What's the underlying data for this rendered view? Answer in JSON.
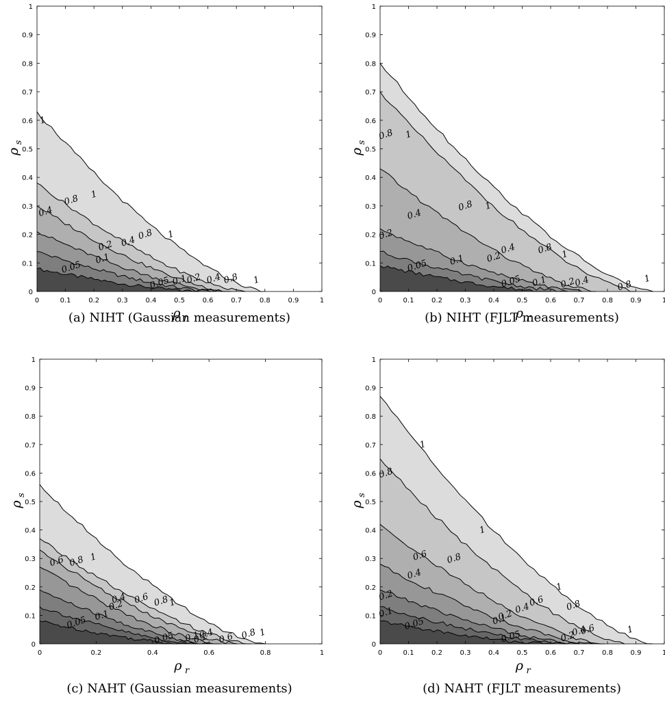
{
  "chart_data": [
    {
      "type": "contour",
      "caption": "(a) NIHT (Gaussian measurements)",
      "xlabel": "ρ",
      "xlabel_sub": "r",
      "ylabel": "ρ",
      "ylabel_sub": "s",
      "xlim": [
        0,
        1
      ],
      "ylim": [
        0,
        1
      ],
      "xticks": [
        "0",
        "0.1",
        "0.2",
        "0.3",
        "0.4",
        "0.5",
        "0.6",
        "0.7",
        "0.8",
        "0.9",
        "1"
      ],
      "yticks": [
        "0",
        "0.1",
        "0.2",
        "0.3",
        "0.4",
        "0.5",
        "0.6",
        "0.7",
        "0.8",
        "0.9",
        "1"
      ],
      "levels": [
        {
          "level": "0.05",
          "label": "0.05",
          "y0": 0.08,
          "x0": 0.0,
          "y_end": 0.0,
          "x_end": 0.57,
          "label_points": [
            [
              0.12,
              0.085
            ],
            [
              0.43,
              0.03
            ]
          ]
        },
        {
          "level": "0.1",
          "label": "0.1",
          "y0": 0.14,
          "x0": 0.0,
          "y_end": 0.0,
          "x_end": 0.62,
          "label_points": [
            [
              0.23,
              0.115
            ],
            [
              0.5,
              0.04
            ]
          ]
        },
        {
          "level": "0.2",
          "label": "0.2",
          "y0": 0.21,
          "x0": 0.0,
          "y_end": 0.0,
          "x_end": 0.65,
          "label_points": [
            [
              0.24,
              0.16
            ],
            [
              0.55,
              0.045
            ]
          ]
        },
        {
          "level": "0.4",
          "label": "0.4",
          "y0": 0.3,
          "x0": 0.0,
          "y_end": 0.0,
          "x_end": 0.68,
          "label_points": [
            [
              0.03,
              0.28
            ],
            [
              0.32,
              0.175
            ],
            [
              0.62,
              0.045
            ]
          ]
        },
        {
          "level": "0.8",
          "label": "0.8",
          "y0": 0.38,
          "x0": 0.0,
          "y_end": 0.0,
          "x_end": 0.73,
          "label_points": [
            [
              0.12,
              0.32
            ],
            [
              0.38,
              0.2
            ],
            [
              0.68,
              0.045
            ]
          ]
        },
        {
          "level": "1",
          "label": "1",
          "y0": 0.63,
          "x0": 0.0,
          "y_end": 0.0,
          "x_end": 0.8,
          "label_points": [
            [
              0.02,
              0.6
            ],
            [
              0.2,
              0.34
            ],
            [
              0.47,
              0.2
            ],
            [
              0.77,
              0.04
            ]
          ]
        }
      ]
    },
    {
      "type": "contour",
      "caption": "(b) NIHT (FJLT measurements)",
      "xlabel": "ρ",
      "xlabel_sub": "r",
      "ylabel": "ρ",
      "ylabel_sub": "s",
      "xlim": [
        0,
        1
      ],
      "ylim": [
        0,
        1
      ],
      "xticks": [
        "0",
        "0.1",
        "0.2",
        "0.3",
        "0.4",
        "0.5",
        "0.6",
        "0.7",
        "0.8",
        "0.9",
        "1"
      ],
      "yticks": [
        "0",
        "0.1",
        "0.2",
        "0.3",
        "0.4",
        "0.5",
        "0.6",
        "0.7",
        "0.8",
        "0.9",
        "1"
      ],
      "levels": [
        {
          "level": "0.05",
          "label": "0.05",
          "y0": 0.09,
          "x0": 0.0,
          "y_end": 0.0,
          "x_end": 0.6,
          "label_points": [
            [
              0.13,
              0.09
            ],
            [
              0.46,
              0.035
            ]
          ]
        },
        {
          "level": "0.1",
          "label": "0.1",
          "y0": 0.14,
          "x0": 0.0,
          "y_end": 0.0,
          "x_end": 0.66,
          "label_points": [
            [
              0.27,
              0.11
            ],
            [
              0.56,
              0.035
            ]
          ]
        },
        {
          "level": "0.2",
          "label": "0.2",
          "y0": 0.22,
          "x0": 0.0,
          "y_end": 0.0,
          "x_end": 0.71,
          "label_points": [
            [
              0.02,
              0.2
            ],
            [
              0.4,
              0.12
            ],
            [
              0.66,
              0.03
            ]
          ]
        },
        {
          "level": "0.4",
          "label": "0.4",
          "y0": 0.43,
          "x0": 0.0,
          "y_end": 0.0,
          "x_end": 0.76,
          "label_points": [
            [
              0.12,
              0.27
            ],
            [
              0.45,
              0.15
            ],
            [
              0.71,
              0.035
            ]
          ]
        },
        {
          "level": "0.8",
          "label": "0.8",
          "y0": 0.7,
          "x0": 0.0,
          "y_end": 0.0,
          "x_end": 0.9,
          "label_points": [
            [
              0.02,
              0.55
            ],
            [
              0.3,
              0.3
            ],
            [
              0.58,
              0.15
            ],
            [
              0.86,
              0.02
            ]
          ]
        },
        {
          "level": "1",
          "label": "1",
          "y0": 0.8,
          "x0": 0.0,
          "y_end": 0.0,
          "x_end": 0.96,
          "label_points": [
            [
              0.1,
              0.55
            ],
            [
              0.38,
              0.3
            ],
            [
              0.65,
              0.13
            ],
            [
              0.94,
              0.045
            ]
          ]
        }
      ]
    },
    {
      "type": "contour",
      "caption": "(c) NAHT (Gaussian measurements)",
      "xlabel": "ρ",
      "xlabel_sub": "r",
      "ylabel": "ρ",
      "ylabel_sub": "s",
      "xlim": [
        0,
        1
      ],
      "ylim": [
        0,
        1
      ],
      "xticks": [
        "0",
        "0.2",
        "0.4",
        "0.6",
        "0.8",
        "1"
      ],
      "yticks": [
        "0",
        "0.1",
        "0.2",
        "0.3",
        "0.4",
        "0.5",
        "0.6",
        "0.7",
        "0.8",
        "0.9",
        "1"
      ],
      "levels": [
        {
          "level": "0.05",
          "label": "0.05",
          "y0": 0.08,
          "x0": 0.0,
          "y_end": 0.0,
          "x_end": 0.52,
          "label_points": [
            [
              0.13,
              0.075
            ],
            [
              0.44,
              0.02
            ]
          ]
        },
        {
          "level": "0.1",
          "label": "0.1",
          "y0": 0.13,
          "x0": 0.0,
          "y_end": 0.0,
          "x_end": 0.56,
          "label_points": [
            [
              0.22,
              0.1
            ],
            [
              0.54,
              0.025
            ]
          ]
        },
        {
          "level": "0.2",
          "label": "0.2",
          "y0": 0.19,
          "x0": 0.0,
          "y_end": 0.0,
          "x_end": 0.6,
          "label_points": [
            [
              0.27,
              0.135
            ],
            [
              0.57,
              0.02
            ]
          ]
        },
        {
          "level": "0.4",
          "label": "0.4",
          "y0": 0.27,
          "x0": 0.0,
          "y_end": 0.0,
          "x_end": 0.64,
          "label_points": [
            [
              0.28,
              0.16
            ],
            [
              0.59,
              0.035
            ]
          ]
        },
        {
          "level": "0.6",
          "label": "0.6",
          "y0": 0.33,
          "x0": 0.0,
          "y_end": 0.0,
          "x_end": 0.7,
          "label_points": [
            [
              0.06,
              0.29
            ],
            [
              0.36,
              0.16
            ],
            [
              0.66,
              0.02
            ]
          ]
        },
        {
          "level": "0.8",
          "label": "0.8",
          "y0": 0.37,
          "x0": 0.0,
          "y_end": 0.0,
          "x_end": 0.75,
          "label_points": [
            [
              0.13,
              0.29
            ],
            [
              0.43,
              0.15
            ],
            [
              0.74,
              0.035
            ]
          ]
        },
        {
          "level": "1",
          "label": "1",
          "y0": 0.56,
          "x0": 0.0,
          "y_end": 0.0,
          "x_end": 0.8,
          "label_points": [
            [
              0.19,
              0.305
            ],
            [
              0.47,
              0.145
            ],
            [
              0.79,
              0.04
            ]
          ]
        }
      ]
    },
    {
      "type": "contour",
      "caption": "(d) NAHT (FJLT measurements)",
      "xlabel": "ρ",
      "xlabel_sub": "r",
      "ylabel": "ρ",
      "ylabel_sub": "s",
      "xlim": [
        0,
        1
      ],
      "ylim": [
        0,
        1
      ],
      "xticks": [
        "0",
        "0.1",
        "0.2",
        "0.3",
        "0.4",
        "0.5",
        "0.6",
        "0.7",
        "0.8",
        "0.9",
        "1"
      ],
      "yticks": [
        "0",
        "0.1",
        "0.2",
        "0.3",
        "0.4",
        "0.5",
        "0.6",
        "0.7",
        "0.8",
        "0.9",
        "1"
      ],
      "levels": [
        {
          "level": "0.05",
          "label": "0.05",
          "y0": 0.08,
          "x0": 0.0,
          "y_end": 0.0,
          "x_end": 0.6,
          "label_points": [
            [
              0.12,
              0.07
            ],
            [
              0.46,
              0.025
            ]
          ]
        },
        {
          "level": "0.1",
          "label": "0.1",
          "y0": 0.13,
          "x0": 0.0,
          "y_end": 0.0,
          "x_end": 0.66,
          "label_points": [
            [
              0.02,
              0.11
            ],
            [
              0.42,
              0.085
            ]
          ]
        },
        {
          "level": "0.2",
          "label": "0.2",
          "y0": 0.19,
          "x0": 0.0,
          "y_end": 0.0,
          "x_end": 0.7,
          "label_points": [
            [
              0.02,
              0.17
            ],
            [
              0.44,
              0.1
            ],
            [
              0.66,
              0.025
            ]
          ]
        },
        {
          "level": "0.4",
          "label": "0.4",
          "y0": 0.28,
          "x0": 0.0,
          "y_end": 0.0,
          "x_end": 0.75,
          "label_points": [
            [
              0.12,
              0.245
            ],
            [
              0.5,
              0.125
            ],
            [
              0.7,
              0.045
            ]
          ]
        },
        {
          "level": "0.6",
          "label": "0.6",
          "y0": 0.42,
          "x0": 0.0,
          "y_end": 0.0,
          "x_end": 0.79,
          "label_points": [
            [
              0.14,
              0.31
            ],
            [
              0.55,
              0.15
            ],
            [
              0.73,
              0.05
            ]
          ]
        },
        {
          "level": "0.8",
          "label": "0.8",
          "y0": 0.65,
          "x0": 0.0,
          "y_end": 0.0,
          "x_end": 0.86,
          "label_points": [
            [
              0.02,
              0.6
            ],
            [
              0.26,
              0.3
            ],
            [
              0.68,
              0.135
            ]
          ]
        },
        {
          "level": "1",
          "label": "1",
          "y0": 0.87,
          "x0": 0.0,
          "y_end": 0.0,
          "x_end": 0.96,
          "label_points": [
            [
              0.15,
              0.7
            ],
            [
              0.36,
              0.4
            ],
            [
              0.63,
              0.2
            ],
            [
              0.88,
              0.05
            ]
          ]
        }
      ]
    }
  ]
}
